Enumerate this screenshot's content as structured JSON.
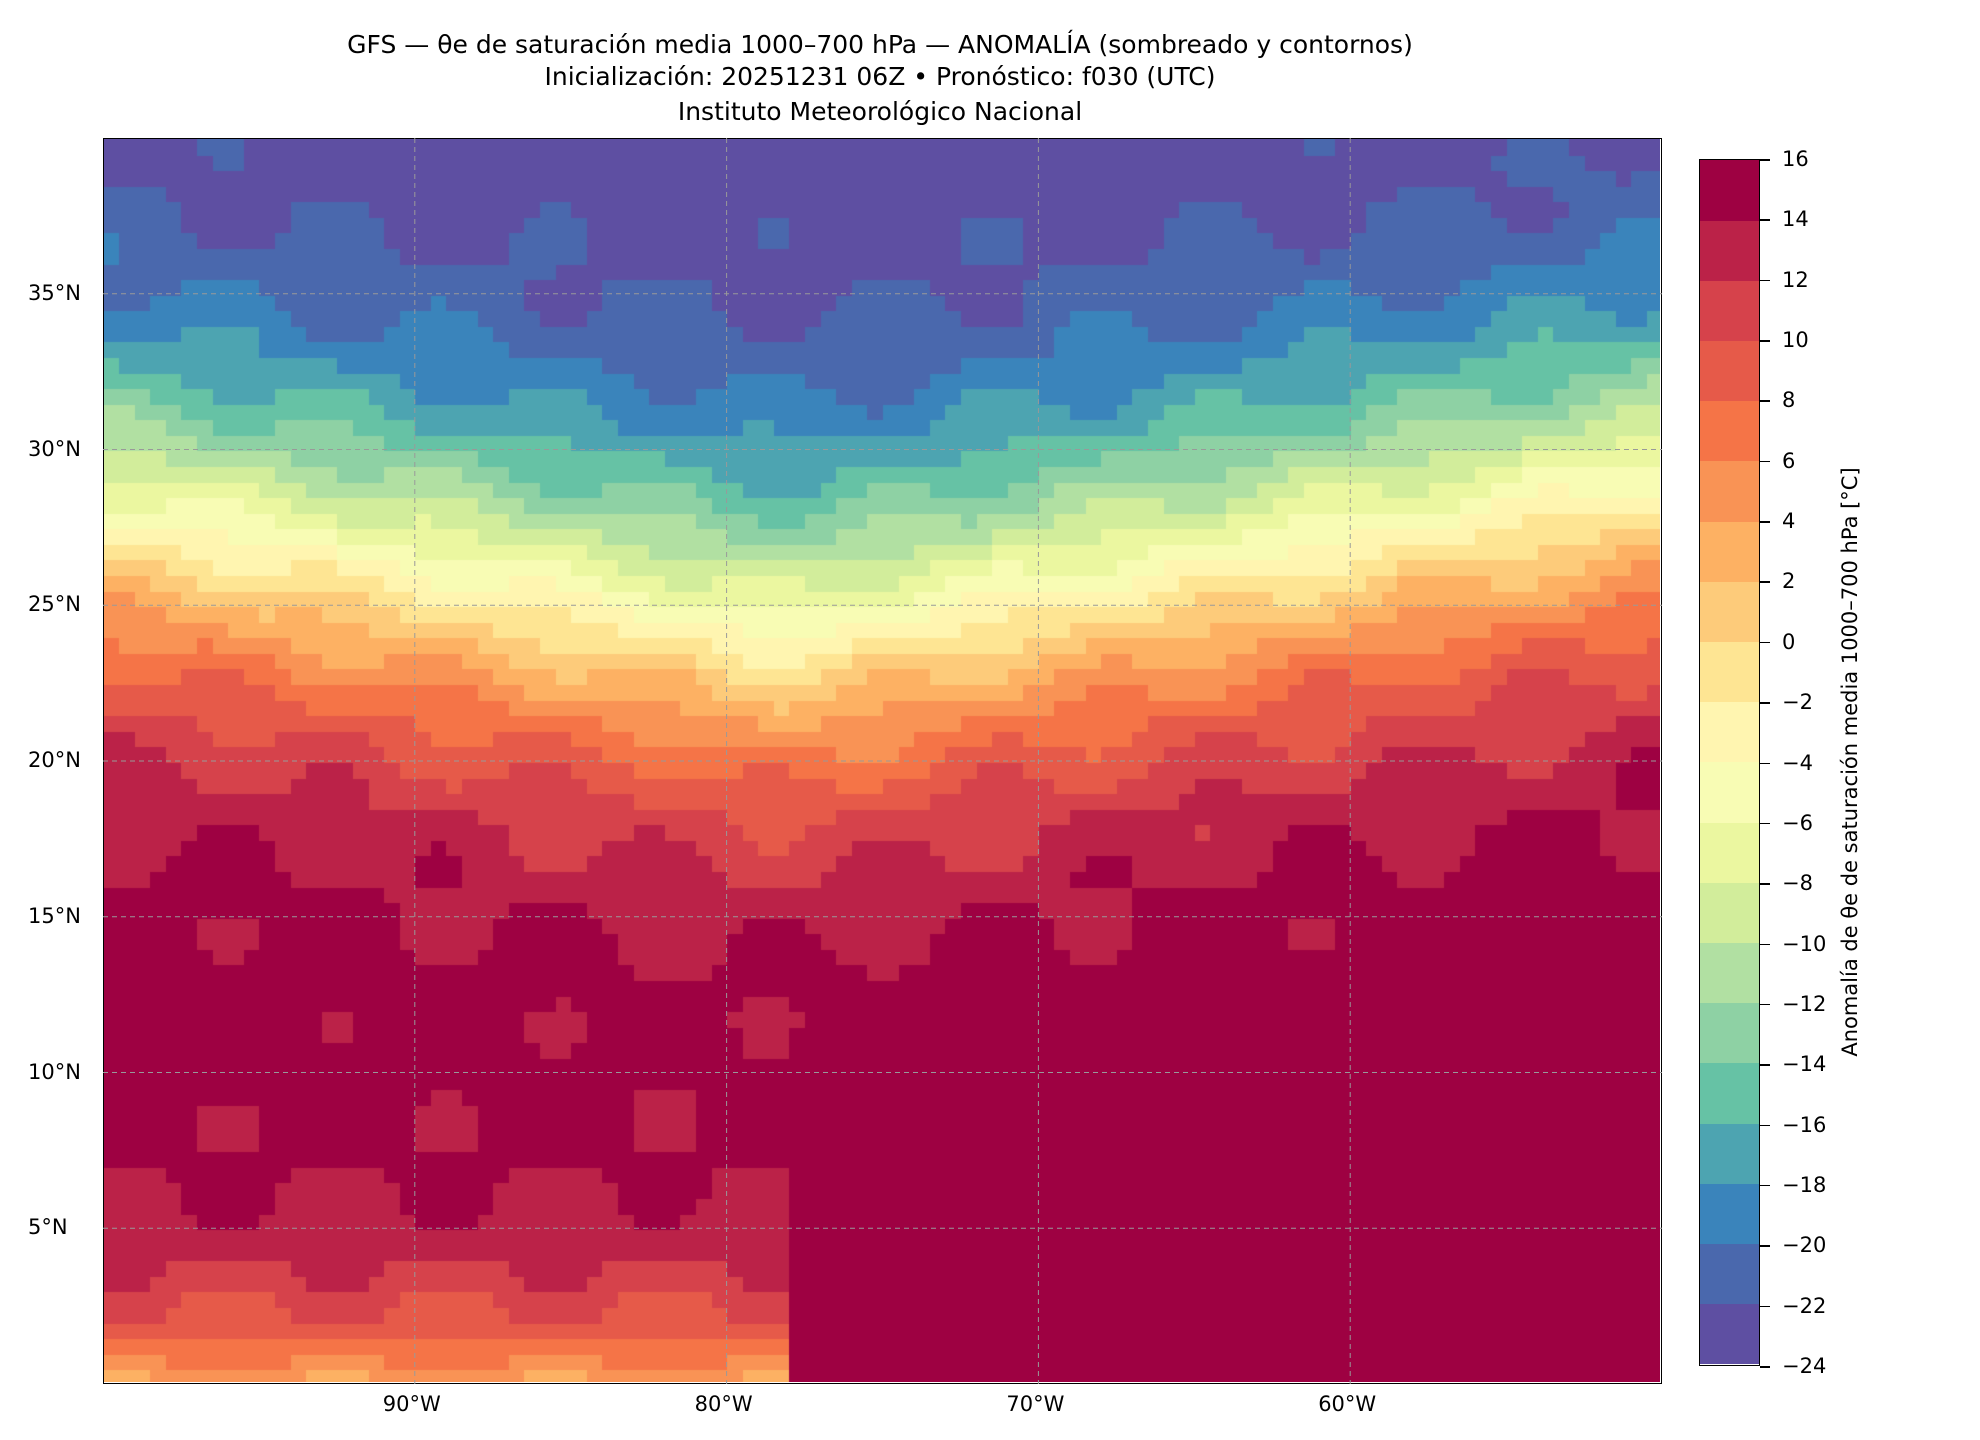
{
  "chart_data": {
    "type": "heatmap",
    "title": "GFS — θe de saturación media 1000–700 hPa — ANOMALÍA (sombreado y contornos)",
    "subtitle": "Inicialización: 20251231 06Z   •   Pronóstico: f030 (UTC)",
    "institution": "Instituto Meteorológico Nacional",
    "xlim": [
      -100,
      -50
    ],
    "ylim": [
      0,
      40
    ],
    "grid": true,
    "x_ticks": [
      {
        "value": -90,
        "label": "90°W"
      },
      {
        "value": -80,
        "label": "80°W"
      },
      {
        "value": -70,
        "label": "70°W"
      },
      {
        "value": -60,
        "label": "60°W"
      }
    ],
    "y_ticks": [
      {
        "value": 35,
        "label": "35°N"
      },
      {
        "value": 30,
        "label": "30°N"
      },
      {
        "value": 25,
        "label": "25°N"
      },
      {
        "value": 20,
        "label": "20°N"
      },
      {
        "value": 15,
        "label": "15°N"
      },
      {
        "value": 10,
        "label": "10°N"
      },
      {
        "value": 5,
        "label": "5°N"
      }
    ],
    "colorbar": {
      "label": "Anomalía de θe de saturación media 1000–700 hPa [°C]",
      "range": [
        -24,
        16
      ],
      "levels": [
        -24,
        -22,
        -20,
        -18,
        -16,
        -14,
        -12,
        -10,
        -8,
        -6,
        -4,
        -2,
        0,
        2,
        4,
        6,
        8,
        10,
        12,
        14,
        16
      ],
      "tick_labels": [
        "−24",
        "−22",
        "−20",
        "−18",
        "−16",
        "−14",
        "−12",
        "−10",
        "−8",
        "−6",
        "−4",
        "−2",
        "0",
        "2",
        "4",
        "6",
        "8",
        "10",
        "12",
        "14",
        "16"
      ],
      "colors": [
        "#5e4fa2",
        "#4a68ad",
        "#3a84bb",
        "#4da4b1",
        "#66c2a5",
        "#8ed1a4",
        "#b1e0a2",
        "#d2ed9b",
        "#ebf7a0",
        "#f8fcb4",
        "#fff5b0",
        "#fee593",
        "#fdcb7a",
        "#fdb163",
        "#f99355",
        "#f57447",
        "#e65a49",
        "#d6424b",
        "#bb2248",
        "#9e0142"
      ]
    },
    "field_summary": {
      "min_region": "north-central (~35-40°N, 85-65°W) ≤ −24",
      "max_region": "Caribbean / northern South America 16",
      "zero_contour": "from ~22°N 82°W to ~27°N 55°W"
    }
  }
}
